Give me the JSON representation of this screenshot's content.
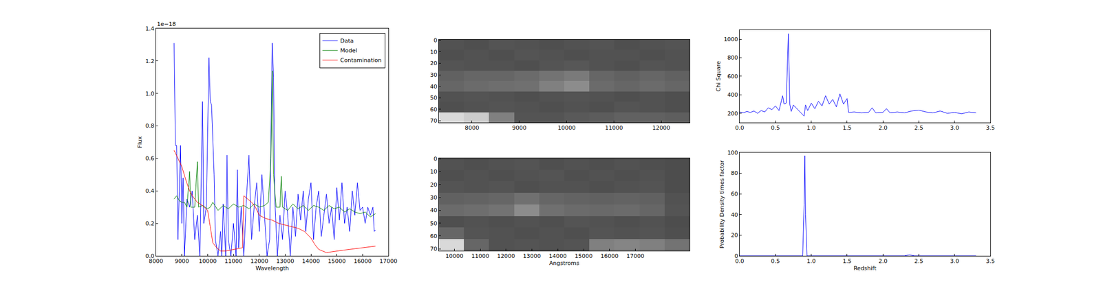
{
  "chart_data": [
    {
      "type": "line",
      "x_label": "Wavelength",
      "y_label": "Flux",
      "annotations": [
        {
          "text": "1e−18"
        }
      ],
      "xlim": [
        8000,
        17000
      ],
      "xticks": [
        8000,
        9000,
        10000,
        11000,
        12000,
        13000,
        14000,
        15000,
        16000,
        17000
      ],
      "ylim": [
        0,
        1.4
      ],
      "yticks": [
        {
          "value": 0,
          "label": "0.0"
        },
        0.2,
        0.4,
        0.6,
        0.8,
        {
          "value": 1,
          "label": "1.0"
        },
        1.2,
        1.4
      ],
      "grid": false,
      "legend": "upper right",
      "series": [
        {
          "name": "Data",
          "color": "#0000ff",
          "x": [
            8700,
            8750,
            8800,
            8850,
            8900,
            8950,
            9000,
            9050,
            9100,
            9200,
            9300,
            9400,
            9500,
            9600,
            9700,
            9800,
            9850,
            9950,
            10050,
            10100,
            10150,
            10250,
            10300,
            10400,
            10500,
            10550,
            10600,
            10700,
            10750,
            10800,
            10900,
            11000,
            11100,
            11150,
            11200,
            11300,
            11400,
            11500,
            11600,
            11700,
            11800,
            11900,
            12000,
            12100,
            12200,
            12300,
            12400,
            12500,
            12550,
            12600,
            12700,
            12800,
            12900,
            13000,
            13100,
            13200,
            13300,
            13400,
            13500,
            13600,
            13700,
            13800,
            13900,
            14000,
            14100,
            14200,
            14300,
            14400,
            14500,
            14600,
            14700,
            14800,
            14900,
            15000,
            15100,
            15200,
            15300,
            15400,
            15500,
            15600,
            15700,
            15800,
            15900,
            16000,
            16100,
            16200,
            16300,
            16400,
            16450,
            16500
          ],
          "values": [
            1.31,
            0.68,
            0.68,
            0.1,
            0.4,
            0.68,
            0.2,
            0.48,
            0.0,
            0.35,
            0.3,
            0.4,
            0.1,
            0.25,
            0.0,
            0.95,
            0.2,
            0.3,
            1.22,
            0.95,
            0.93,
            0.5,
            0.1,
            0.0,
            0.15,
            0.0,
            0.32,
            0.0,
            0.62,
            0.1,
            0.0,
            0.2,
            0.0,
            0.53,
            0.05,
            0.3,
            0.0,
            0.35,
            0.62,
            0.1,
            0.3,
            0.45,
            0.15,
            0.5,
            0.25,
            0.0,
            0.1,
            1.31,
            1.1,
            0.35,
            0.0,
            0.25,
            0.1,
            0.4,
            0.25,
            0.0,
            0.3,
            0.12,
            0.38,
            0.22,
            0.4,
            0.15,
            0.35,
            0.45,
            0.1,
            0.3,
            0.4,
            0.12,
            0.25,
            0.38,
            0.2,
            0.3,
            0.1,
            0.42,
            0.22,
            0.45,
            0.2,
            0.3,
            0.15,
            0.4,
            0.25,
            0.45,
            0.28,
            0.3,
            0.2,
            0.3,
            0.25,
            0.3,
            0.15,
            0.16
          ]
        },
        {
          "name": "Model",
          "color": "#008000",
          "x": [
            8700,
            8800,
            8900,
            9000,
            9100,
            9200,
            9300,
            9350,
            9500,
            9600,
            9650,
            9800,
            10000,
            10100,
            10200,
            10400,
            10600,
            10800,
            11000,
            11200,
            11400,
            11600,
            11800,
            12000,
            12200,
            12350,
            12450,
            12500,
            12550,
            12650,
            12800,
            12850,
            12900,
            13100,
            13300,
            13500,
            13700,
            13900,
            14100,
            14300,
            14500,
            14700,
            14900,
            15100,
            15300,
            15500,
            15700,
            15900,
            16100,
            16300,
            16500
          ],
          "values": [
            0.35,
            0.37,
            0.34,
            0.33,
            0.33,
            0.3,
            0.52,
            0.3,
            0.3,
            0.58,
            0.3,
            0.31,
            0.29,
            0.3,
            0.33,
            0.28,
            0.31,
            0.29,
            0.32,
            0.3,
            0.31,
            0.29,
            0.32,
            0.3,
            0.31,
            0.33,
            0.6,
            1.14,
            0.5,
            0.3,
            0.3,
            0.49,
            0.3,
            0.28,
            0.32,
            0.29,
            0.31,
            0.28,
            0.31,
            0.3,
            0.28,
            0.31,
            0.29,
            0.3,
            0.27,
            0.29,
            0.27,
            0.26,
            0.27,
            0.24,
            0.26
          ]
        },
        {
          "name": "Contamination",
          "color": "#ff0000",
          "x": [
            8700,
            8850,
            9000,
            9150,
            9300,
            9450,
            9600,
            9800,
            10000,
            10100,
            10200,
            10350,
            10500,
            10700,
            11000,
            11350,
            11400,
            11550,
            11700,
            11850,
            12000,
            12250,
            12500,
            12750,
            13000,
            13250,
            13500,
            13750,
            14000,
            14150,
            14300,
            14450,
            14600,
            14800,
            15000,
            15250,
            15500,
            15750,
            16000,
            16250,
            16500
          ],
          "values": [
            0.65,
            0.6,
            0.55,
            0.47,
            0.4,
            0.36,
            0.33,
            0.31,
            0.28,
            0.18,
            0.08,
            0.05,
            0.03,
            0.03,
            0.04,
            0.05,
            0.37,
            0.35,
            0.33,
            0.3,
            0.25,
            0.23,
            0.22,
            0.2,
            0.19,
            0.18,
            0.17,
            0.15,
            0.11,
            0.07,
            0.04,
            0.03,
            0.02,
            0.025,
            0.03,
            0.035,
            0.04,
            0.045,
            0.05,
            0.055,
            0.06
          ]
        }
      ]
    },
    {
      "type": "heatmap",
      "xlim": [
        7300,
        12600
      ],
      "xticks": [
        8000,
        9000,
        10000,
        11000,
        12000
      ],
      "ylim": [
        71.5,
        -0.5
      ],
      "yticks": [
        0,
        10,
        20,
        30,
        40,
        50,
        60,
        70
      ],
      "grid": false,
      "x": [
        7565,
        8095,
        8625,
        9155,
        9685,
        10215,
        10745,
        11275,
        11805,
        12335
      ],
      "y": [
        4,
        13,
        22,
        31,
        40,
        49,
        58,
        67
      ],
      "zlim": [
        0,
        1
      ],
      "z": [
        [
          0.32,
          0.31,
          0.33,
          0.32,
          0.31,
          0.32,
          0.33,
          0.31,
          0.32,
          0.33
        ],
        [
          0.31,
          0.32,
          0.31,
          0.33,
          0.32,
          0.31,
          0.32,
          0.32,
          0.31,
          0.32
        ],
        [
          0.33,
          0.32,
          0.32,
          0.31,
          0.33,
          0.34,
          0.32,
          0.31,
          0.33,
          0.32
        ],
        [
          0.38,
          0.4,
          0.4,
          0.42,
          0.45,
          0.48,
          0.4,
          0.38,
          0.4,
          0.38
        ],
        [
          0.4,
          0.42,
          0.43,
          0.44,
          0.5,
          0.55,
          0.42,
          0.4,
          0.42,
          0.4
        ],
        [
          0.32,
          0.33,
          0.32,
          0.31,
          0.32,
          0.33,
          0.32,
          0.31,
          0.32,
          0.31
        ],
        [
          0.31,
          0.32,
          0.33,
          0.32,
          0.31,
          0.32,
          0.31,
          0.33,
          0.32,
          0.31
        ],
        [
          0.85,
          0.8,
          0.5,
          0.33,
          0.33,
          0.35,
          0.36,
          0.38,
          0.38,
          0.37
        ]
      ]
    },
    {
      "type": "heatmap",
      "x_label": "Angstroms",
      "xlim": [
        9400,
        19100
      ],
      "xticks": [
        10000,
        11000,
        12000,
        13000,
        14000,
        15000,
        16000,
        17000
      ],
      "ylim": [
        71.5,
        -0.5
      ],
      "yticks": [
        0,
        10,
        20,
        30,
        40,
        50,
        60,
        70
      ],
      "grid": false,
      "x": [
        9885,
        10855,
        11825,
        12795,
        13765,
        14735,
        15705,
        16675,
        17645,
        18615
      ],
      "y": [
        4,
        13,
        22,
        31,
        40,
        49,
        58,
        67
      ],
      "zlim": [
        0,
        1
      ],
      "z": [
        [
          0.32,
          0.31,
          0.32,
          0.33,
          0.31,
          0.32,
          0.31,
          0.32,
          0.31,
          0.3
        ],
        [
          0.31,
          0.32,
          0.31,
          0.32,
          0.33,
          0.31,
          0.32,
          0.31,
          0.32,
          0.3
        ],
        [
          0.33,
          0.32,
          0.33,
          0.31,
          0.32,
          0.32,
          0.31,
          0.32,
          0.33,
          0.3
        ],
        [
          0.38,
          0.39,
          0.4,
          0.44,
          0.4,
          0.39,
          0.38,
          0.39,
          0.38,
          0.32
        ],
        [
          0.42,
          0.43,
          0.45,
          0.55,
          0.44,
          0.42,
          0.41,
          0.42,
          0.4,
          0.33
        ],
        [
          0.31,
          0.32,
          0.31,
          0.32,
          0.31,
          0.33,
          0.32,
          0.31,
          0.32,
          0.3
        ],
        [
          0.4,
          0.33,
          0.32,
          0.31,
          0.32,
          0.31,
          0.33,
          0.32,
          0.33,
          0.31
        ],
        [
          0.85,
          0.4,
          0.32,
          0.33,
          0.32,
          0.33,
          0.5,
          0.52,
          0.5,
          0.45
        ]
      ]
    },
    {
      "type": "line",
      "y_label": "Chi Square",
      "xlim": [
        0,
        3.5
      ],
      "xticks": [
        {
          "value": 0,
          "label": "0.0"
        },
        0.5,
        {
          "value": 1,
          "label": "1.0"
        },
        1.5,
        {
          "value": 2,
          "label": "2.0"
        },
        2.5,
        {
          "value": 3,
          "label": "3.0"
        },
        3.5
      ],
      "ylim": [
        100,
        1100
      ],
      "yticks": [
        200,
        400,
        600,
        800,
        1000
      ],
      "grid": false,
      "series": [
        {
          "color": "#0000ff",
          "x": [
            0,
            0.05,
            0.1,
            0.15,
            0.2,
            0.25,
            0.3,
            0.35,
            0.4,
            0.45,
            0.5,
            0.55,
            0.6,
            0.62,
            0.65,
            0.68,
            0.7,
            0.72,
            0.75,
            0.8,
            0.85,
            0.9,
            0.92,
            0.95,
            1.0,
            1.05,
            1.1,
            1.15,
            1.2,
            1.25,
            1.3,
            1.35,
            1.4,
            1.45,
            1.5,
            1.52,
            1.6,
            1.7,
            1.8,
            1.85,
            1.9,
            2.0,
            2.05,
            2.1,
            2.2,
            2.3,
            2.4,
            2.5,
            2.6,
            2.7,
            2.8,
            2.9,
            3.0,
            3.1,
            3.2,
            3.3
          ],
          "values": [
            215,
            205,
            220,
            210,
            225,
            200,
            230,
            215,
            260,
            240,
            280,
            230,
            390,
            300,
            310,
            1060,
            300,
            220,
            290,
            250,
            210,
            170,
            290,
            230,
            310,
            250,
            330,
            280,
            390,
            300,
            350,
            270,
            410,
            300,
            360,
            210,
            215,
            205,
            210,
            260,
            205,
            210,
            250,
            205,
            215,
            205,
            225,
            235,
            215,
            205,
            225,
            200,
            210,
            195,
            215,
            205
          ]
        }
      ]
    },
    {
      "type": "line",
      "x_label": "Redshift",
      "y_label": "Probability Density times factor",
      "xlim": [
        0,
        3.5
      ],
      "xticks": [
        {
          "value": 0,
          "label": "0.0"
        },
        0.5,
        {
          "value": 1,
          "label": "1.0"
        },
        1.5,
        {
          "value": 2,
          "label": "2.0"
        },
        2.5,
        {
          "value": 3,
          "label": "3.0"
        },
        3.5
      ],
      "ylim": [
        0,
        100
      ],
      "yticks": [
        0,
        20,
        40,
        60,
        80,
        100
      ],
      "grid": false,
      "series": [
        {
          "color": "#0000ff",
          "x": [
            0,
            0.88,
            0.9,
            0.91,
            0.92,
            0.94,
            2.3,
            2.37,
            2.44,
            3.3
          ],
          "values": [
            0,
            0,
            50,
            97,
            40,
            0,
            0,
            1,
            0,
            0
          ]
        }
      ]
    }
  ]
}
